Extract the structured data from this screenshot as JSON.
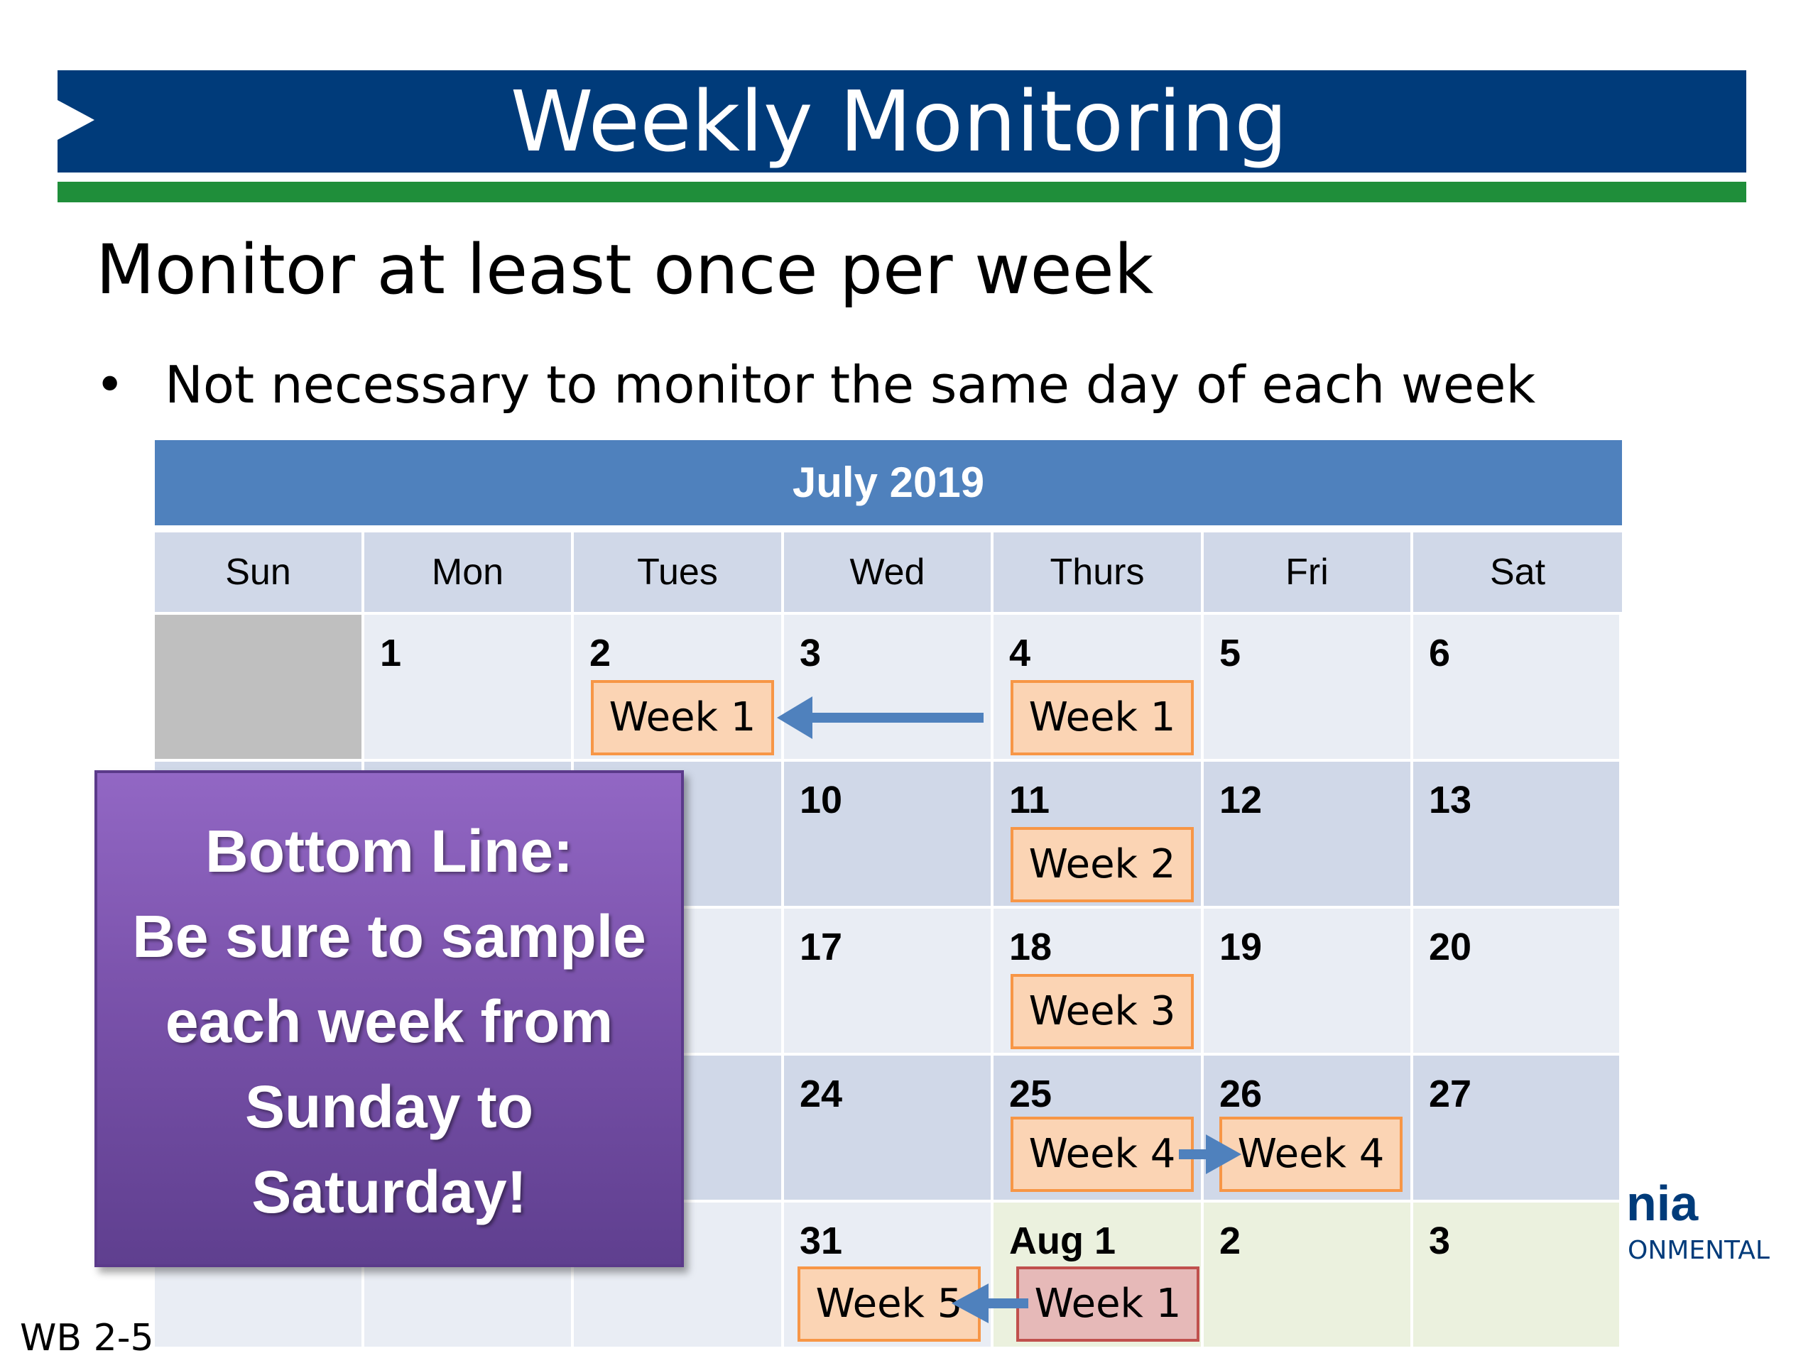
{
  "slide": {
    "title": "Weekly Monitoring",
    "subtitle": "Monitor at least once per week",
    "bullet": "Not necessary to monitor the same day of each week",
    "footer_code": "WB 2-5",
    "logo_fragment": "nia",
    "logo_sub": "ONMENTAL"
  },
  "calendar": {
    "month": "July 2019",
    "days": [
      "Sun",
      "Mon",
      "Tues",
      "Wed",
      "Thurs",
      "Fri",
      "Sat"
    ],
    "rows": [
      [
        "",
        "1",
        "2",
        "3",
        "4",
        "5",
        "6"
      ],
      [
        "",
        "",
        "",
        "10",
        "11",
        "12",
        "13"
      ],
      [
        "",
        "",
        "",
        "17",
        "18",
        "19",
        "20"
      ],
      [
        "",
        "",
        "",
        "24",
        "25",
        "26",
        "27"
      ],
      [
        "",
        "",
        "",
        "31",
        "Aug 1",
        "2",
        "3"
      ]
    ],
    "week_labels": {
      "r0_tue": "Week 1",
      "r0_thu": "Week 1",
      "r1_thu": "Week 2",
      "r2_thu": "Week 3",
      "r3_thu": "Week 4",
      "r3_fri": "Week 4",
      "r4_wed": "Week 5",
      "r4_thu": "Week 1"
    },
    "colors": {
      "header": "#4f81bd",
      "dayname_bg": "#d0d8e8",
      "row_dark": "#d0d8e8",
      "row_light": "#e9edf4",
      "next_month": "#ebf1de",
      "empty": "#bfbfbf",
      "week_box": "#fbd4b4",
      "week_box_border": "#f79646",
      "week_box_next": "#e6b9b8",
      "arrow": "#4f81bd"
    }
  },
  "callout": {
    "lines": [
      "Bottom Line:",
      "Be sure to sample",
      "each week from",
      "Sunday to",
      "Saturday!"
    ]
  }
}
